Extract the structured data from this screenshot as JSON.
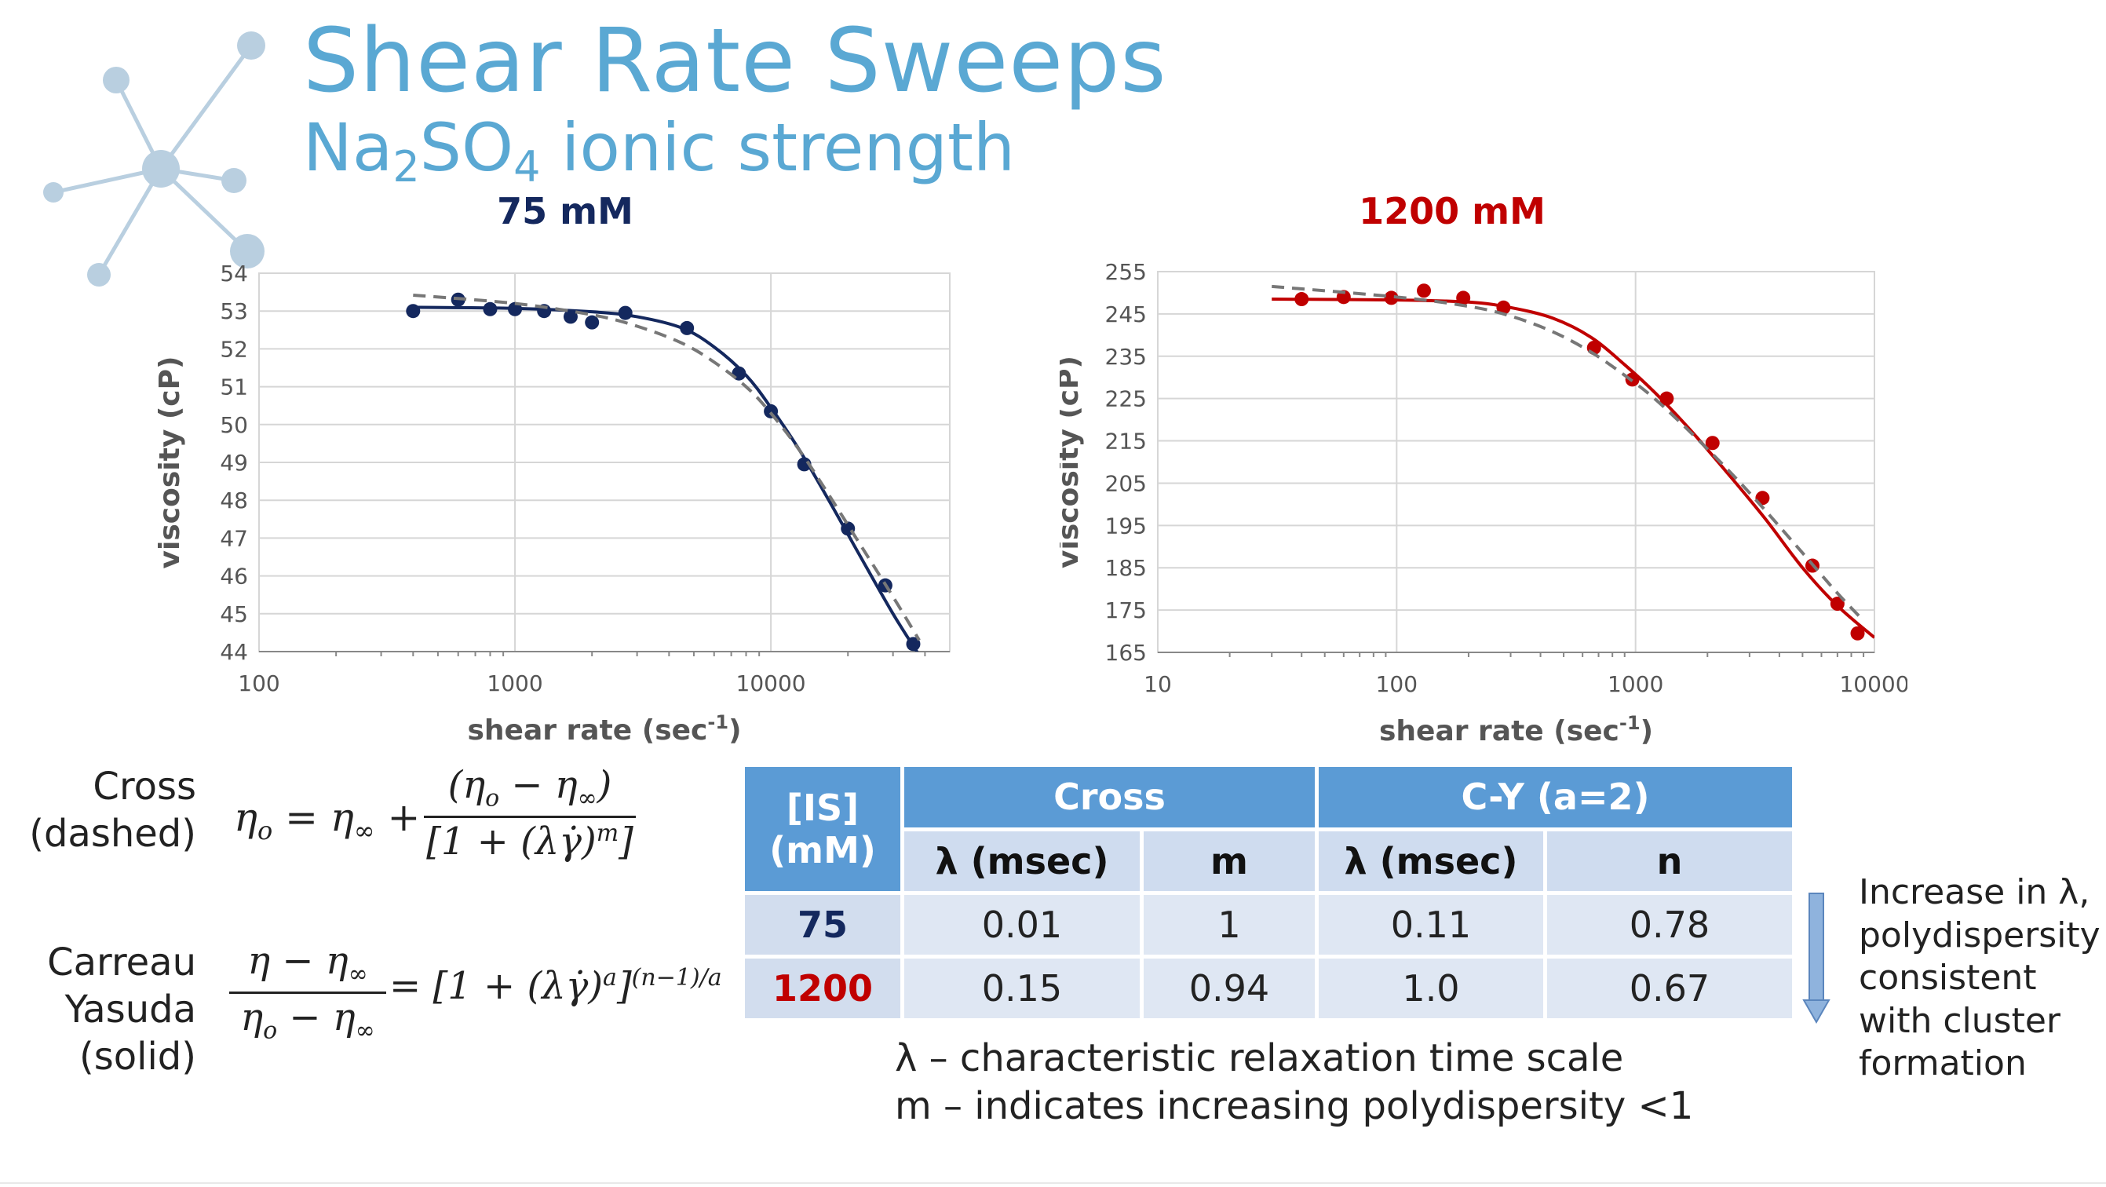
{
  "slide": {
    "title": "Shear Rate Sweeps",
    "subtitle_prefix": "Na",
    "subtitle_sub1": "2",
    "subtitle_mid": "SO",
    "subtitle_sub2": "4",
    "subtitle_suffix": " ionic strength"
  },
  "colors": {
    "accent": "#5aa8d3",
    "series_75": "#14285e",
    "series_1200": "#c00000",
    "cross_dashed": "#777777",
    "table_header": "#5b9bd5"
  },
  "chart_data": [
    {
      "type": "scatter",
      "title": "75 mM",
      "xlabel": "shear rate (sec-1)",
      "xlabel_base": "shear rate (sec",
      "xlabel_exp": "-1",
      "xlabel_close": ")",
      "ylabel": "viscosity (cP)",
      "xscale": "log",
      "xlim": [
        100,
        50000
      ],
      "ylim": [
        44,
        54
      ],
      "xticks": [
        100,
        1000,
        10000
      ],
      "xtick_labels": [
        "100",
        "1000",
        "10000"
      ],
      "yticks": [
        44,
        45,
        46,
        47,
        48,
        49,
        50,
        51,
        52,
        53,
        54
      ],
      "ytick_labels": [
        "44",
        "45",
        "46",
        "47",
        "48",
        "49",
        "50",
        "51",
        "52",
        "53",
        "54"
      ],
      "grid": true,
      "series": [
        {
          "name": "data",
          "style": "markers",
          "x": [
            400,
            600,
            800,
            1000,
            1300,
            1650,
            2000,
            2700,
            4700,
            7500,
            10000,
            13500,
            20000,
            28000,
            36000
          ],
          "y": [
            53.0,
            53.3,
            53.05,
            53.05,
            53.0,
            52.85,
            52.7,
            52.95,
            52.55,
            51.35,
            50.35,
            48.95,
            47.25,
            45.75,
            44.2
          ]
        },
        {
          "name": "Carreau-Yasuda",
          "style": "solid",
          "x": [
            400,
            1000,
            2000,
            3000,
            4500,
            6000,
            8000,
            10000,
            13000,
            17000,
            22000,
            30000,
            38000
          ],
          "y": [
            53.1,
            53.07,
            52.98,
            52.85,
            52.55,
            52.05,
            51.3,
            50.45,
            49.3,
            47.95,
            46.6,
            45.0,
            43.9
          ]
        },
        {
          "name": "Cross",
          "style": "dashed",
          "x": [
            400,
            1000,
            2000,
            3000,
            4500,
            6000,
            8000,
            10000,
            13000,
            17000,
            22000,
            30000,
            38000
          ],
          "y": [
            53.42,
            53.2,
            52.9,
            52.6,
            52.15,
            51.65,
            51.0,
            50.3,
            49.3,
            48.1,
            46.9,
            45.45,
            44.3
          ]
        }
      ]
    },
    {
      "type": "scatter",
      "title": "1200 mM",
      "xlabel": "shear rate (sec-1)",
      "xlabel_base": "shear rate (sec",
      "xlabel_exp": "-1",
      "xlabel_close": ")",
      "ylabel": "viscosity (cP)",
      "xscale": "log",
      "xlim": [
        10,
        10000
      ],
      "ylim": [
        165,
        255
      ],
      "xticks": [
        10,
        100,
        1000,
        10000
      ],
      "xtick_labels": [
        "10",
        "100",
        "1000",
        "10000"
      ],
      "yticks": [
        165,
        175,
        185,
        195,
        205,
        215,
        225,
        235,
        245,
        255
      ],
      "ytick_labels": [
        "165",
        "175",
        "185",
        "195",
        "205",
        "215",
        "225",
        "235",
        "245",
        "255"
      ],
      "grid": true,
      "series": [
        {
          "name": "data",
          "style": "markers",
          "x": [
            40,
            60,
            95,
            130,
            190,
            280,
            670,
            970,
            1350,
            2100,
            3400,
            5500,
            7000,
            8500
          ],
          "y": [
            248.5,
            249.0,
            248.8,
            250.5,
            248.8,
            246.5,
            237.0,
            229.5,
            225.0,
            214.5,
            201.5,
            185.5,
            176.5,
            169.5
          ]
        },
        {
          "name": "Carreau-Yasuda",
          "style": "solid",
          "x": [
            30,
            100,
            200,
            300,
            450,
            650,
            900,
            1200,
            1700,
            2500,
            3500,
            5000,
            7000,
            10000
          ],
          "y": [
            248.5,
            248.3,
            247.8,
            246.5,
            244.0,
            239.5,
            233.0,
            226.5,
            217.5,
            206.5,
            196.5,
            185.0,
            176.0,
            168.5
          ]
        },
        {
          "name": "Cross",
          "style": "dashed",
          "x": [
            30,
            100,
            200,
            300,
            450,
            650,
            900,
            1200,
            1700,
            2500,
            3500,
            5000,
            7000,
            9000
          ],
          "y": [
            251.5,
            249.0,
            246.8,
            244.5,
            240.8,
            236.0,
            230.5,
            225.0,
            217.0,
            207.5,
            198.5,
            188.5,
            179.0,
            172.5
          ]
        }
      ]
    }
  ],
  "equations": {
    "cross_label_1": "Cross",
    "cross_label_2": "(dashed)",
    "cy_label_1": "Carreau",
    "cy_label_2": "Yasuda",
    "cy_label_3": "(solid)",
    "cross_lhs": "η",
    "cross_lhs_sub": "o",
    "cross_rhs": "= η",
    "cross_rhs_sub": "∞",
    "cross_plus": "+",
    "cross_num": "(η",
    "cross_num_sub1": "o",
    "cross_num_mid": " − η",
    "cross_num_sub2": "∞",
    "cross_num_close": ")",
    "cross_den": "[1 + (λγ̇)",
    "cross_den_sup": "m",
    "cross_den_close": "]",
    "cy_num": "η − η",
    "cy_num_sub": "∞",
    "cy_den": "η",
    "cy_den_sub1": "o",
    "cy_den_mid": " − η",
    "cy_den_sub2": "∞",
    "cy_rhs": "= [1 + (λγ̇)",
    "cy_rhs_sup1": "a",
    "cy_rhs_mid": "]",
    "cy_rhs_sup2": "(n−1)/a"
  },
  "table": {
    "is_header_1": "[IS]",
    "is_header_2": "(mM)",
    "cross_header": "Cross",
    "cy_header": "C-Y (a=2)",
    "sub_headers": [
      "λ (msec)",
      "m",
      "λ (msec)",
      "n"
    ],
    "rows": [
      {
        "label": "75",
        "color": "#14285e",
        "values": [
          "0.01",
          "1",
          "0.11",
          "0.78"
        ]
      },
      {
        "label": "1200",
        "color": "#c00000",
        "values": [
          "0.15",
          "0.94",
          "1.0",
          "0.67"
        ]
      }
    ]
  },
  "notes": {
    "line1": "λ – characteristic relaxation time scale",
    "line2": "m – indicates increasing polydispersity <1"
  },
  "side_note": {
    "line1": "Increase in λ,",
    "line2": "polydispersity",
    "line3": "consistent",
    "line4": "with cluster",
    "line5": "formation"
  }
}
